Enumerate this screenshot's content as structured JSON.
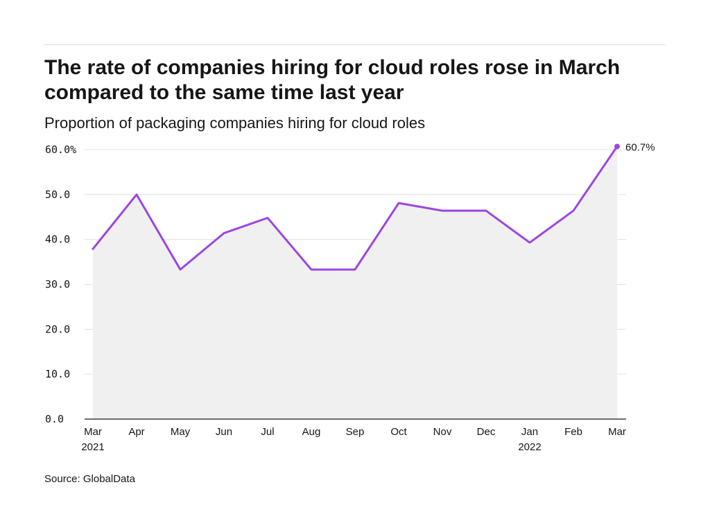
{
  "header": {
    "title": "The rate of companies hiring for cloud roles rose in March compared to the same time last year",
    "subtitle": "Proportion of packaging companies hiring for cloud roles"
  },
  "footer": {
    "source": "Source: GlobalData"
  },
  "chart_data": {
    "type": "area",
    "title": "The rate of companies hiring for cloud roles rose in March compared to the same time last year",
    "subtitle": "Proportion of packaging companies hiring for cloud roles",
    "xlabel": "",
    "ylabel": "",
    "categories": [
      "Mar",
      "Apr",
      "May",
      "Jun",
      "Jul",
      "Aug",
      "Sep",
      "Oct",
      "Nov",
      "Dec",
      "Jan",
      "Feb",
      "Mar"
    ],
    "year_labels": [
      "2021",
      "",
      "",
      "",
      "",
      "",
      "",
      "",
      "",
      "",
      "2022",
      "",
      ""
    ],
    "series": [
      {
        "values": [
          37.9,
          50.0,
          33.3,
          41.4,
          44.8,
          33.3,
          33.3,
          48.1,
          46.4,
          46.4,
          39.3,
          46.4,
          60.7
        ]
      }
    ],
    "ylim": [
      0,
      60
    ],
    "yticks": [
      "0.0",
      "10.0",
      "20.0",
      "30.0",
      "40.0",
      "50.0",
      "60.0%"
    ],
    "ytick_values": [
      0,
      10,
      20,
      30,
      40,
      50,
      60
    ],
    "end_label": "60.7%",
    "grid": true,
    "legend": "none",
    "colors": {
      "line": "#9b45e4",
      "area": "#f0f0f0",
      "grid": "#e0e0e0",
      "axis": "#161616"
    }
  }
}
